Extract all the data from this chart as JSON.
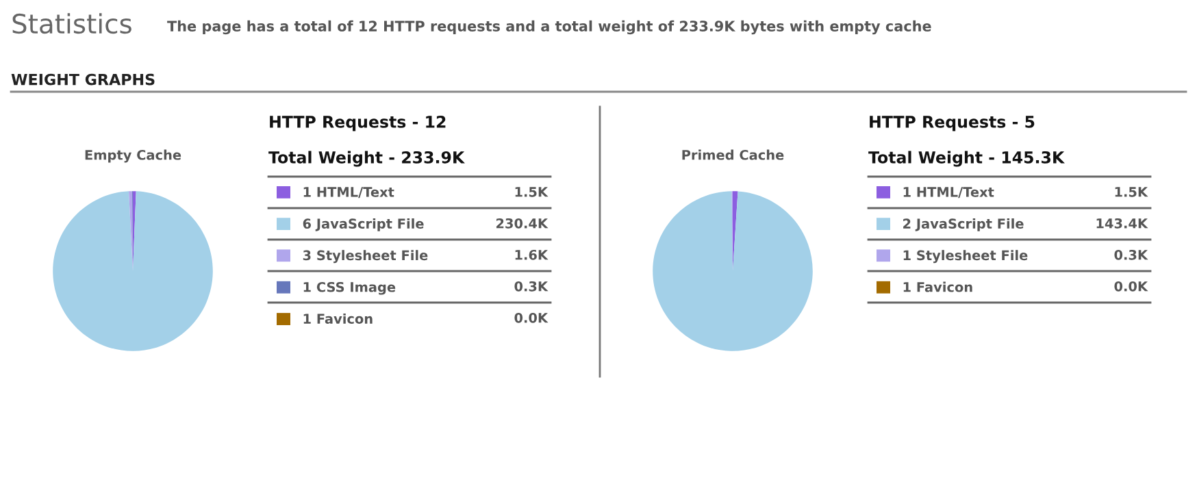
{
  "chart_data": [
    {
      "type": "other",
      "title": "Statistics",
      "subtitle": "The page has a total of 12 HTTP requests and a total weight of 233.9K bytes with empty cache",
      "annotations": [
        "WEIGHT GRAPHS"
      ]
    },
    {
      "type": "pie",
      "title": "Empty Cache",
      "annotations": [
        "HTTP Requests - 12",
        "Total Weight - 233.9K"
      ],
      "categories": [
        "1 HTML/Text",
        "6 JavaScript File",
        "3 Stylesheet File",
        "1 CSS Image",
        "1 Favicon"
      ],
      "values": [
        1.5,
        230.4,
        1.6,
        0.3,
        0.0
      ],
      "colors": [
        "#8c5ee0",
        "#a3d0e8",
        "#b0a6ec",
        "#6677bb",
        "#a36b00"
      ],
      "value_labels": [
        "1.5K",
        "230.4K",
        "1.6K",
        "0.3K",
        "0.0K"
      ],
      "legend": "right"
    },
    {
      "type": "pie",
      "title": "Primed Cache",
      "annotations": [
        "HTTP Requests - 5",
        "Total Weight - 145.3K"
      ],
      "categories": [
        "1 HTML/Text",
        "2 JavaScript File",
        "1 Stylesheet File",
        "1 Favicon"
      ],
      "values": [
        1.5,
        143.4,
        0.3,
        0.0
      ],
      "colors": [
        "#8c5ee0",
        "#a3d0e8",
        "#b0a6ec",
        "#a36b00"
      ],
      "value_labels": [
        "1.5K",
        "143.4K",
        "0.3K",
        "0.0K"
      ],
      "legend": "right"
    }
  ]
}
